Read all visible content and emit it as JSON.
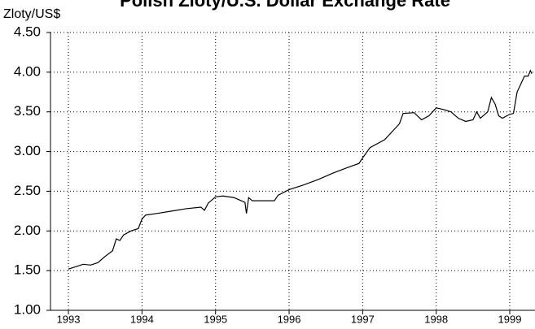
{
  "chart_data": {
    "type": "line",
    "title": "Polish Zloty/U.S. Dollar Exchange Rate",
    "y_label": "Zloty/US$",
    "x": [
      1993.0,
      1993.1,
      1993.2,
      1993.3,
      1993.4,
      1993.5,
      1993.6,
      1993.65,
      1993.7,
      1993.75,
      1993.85,
      1993.95,
      1994.0,
      1994.05,
      1994.2,
      1994.4,
      1994.6,
      1994.8,
      1994.85,
      1994.9,
      1995.0,
      1995.1,
      1995.25,
      1995.35,
      1995.4,
      1995.42,
      1995.45,
      1995.5,
      1995.8,
      1995.85,
      1996.0,
      1996.2,
      1996.4,
      1996.6,
      1996.8,
      1996.95,
      1997.0,
      1997.1,
      1997.3,
      1997.4,
      1997.5,
      1997.55,
      1997.7,
      1997.8,
      1997.9,
      1998.0,
      1998.1,
      1998.2,
      1998.3,
      1998.4,
      1998.5,
      1998.55,
      1998.6,
      1998.7,
      1998.75,
      1998.8,
      1998.85,
      1998.9,
      1999.0,
      1999.05,
      1999.1,
      1999.2,
      1999.25,
      1999.28,
      1999.3
    ],
    "series": [
      {
        "name": "Zloty/US$",
        "color": "#000000",
        "values": [
          1.52,
          1.55,
          1.58,
          1.57,
          1.6,
          1.68,
          1.75,
          1.9,
          1.88,
          1.95,
          2.0,
          2.03,
          2.15,
          2.2,
          2.22,
          2.25,
          2.28,
          2.3,
          2.26,
          2.35,
          2.43,
          2.44,
          2.42,
          2.38,
          2.36,
          2.22,
          2.42,
          2.38,
          2.38,
          2.45,
          2.52,
          2.58,
          2.65,
          2.73,
          2.8,
          2.85,
          2.92,
          3.05,
          3.15,
          3.25,
          3.35,
          3.48,
          3.49,
          3.4,
          3.45,
          3.55,
          3.53,
          3.5,
          3.42,
          3.38,
          3.4,
          3.5,
          3.42,
          3.5,
          3.68,
          3.6,
          3.45,
          3.42,
          3.47,
          3.48,
          3.75,
          3.95,
          3.95,
          4.02,
          3.98
        ]
      }
    ],
    "xlim": [
      1992.756,
      1999.343
    ],
    "xticks": [
      1993,
      1994,
      1995,
      1996,
      1997,
      1998,
      1999
    ],
    "ylim": [
      1,
      4.5
    ],
    "yticks": [
      {
        "value": 1,
        "label": "1.00"
      },
      {
        "value": 1.5,
        "label": "1.50"
      },
      {
        "value": 2,
        "label": "2.00"
      },
      {
        "value": 2.5,
        "label": "2.50"
      },
      {
        "value": 3,
        "label": "3.00"
      },
      {
        "value": 3.5,
        "label": "3.50"
      },
      {
        "value": 4,
        "label": "4.00"
      },
      {
        "value": 4.5,
        "label": "4.50"
      }
    ],
    "grid": true
  }
}
